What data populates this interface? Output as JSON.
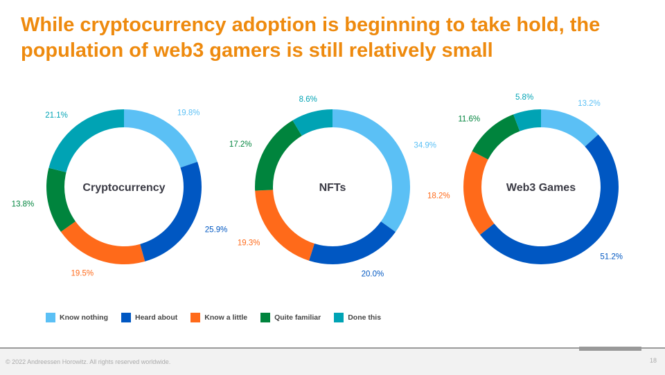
{
  "title": "While cryptocurrency adoption is beginning to take hold, the population of web3 gamers is still relatively small",
  "chart_data": [
    {
      "type": "pie",
      "donut": true,
      "center_label": "Cryptocurrency",
      "categories": [
        "Know nothing",
        "Heard about",
        "Know a little",
        "Quite familiar",
        "Done this"
      ],
      "values": [
        19.8,
        25.9,
        19.5,
        13.8,
        21.1
      ],
      "labels": [
        "19.8%",
        "25.9%",
        "19.5%",
        "13.8%",
        "21.1%"
      ]
    },
    {
      "type": "pie",
      "donut": true,
      "center_label": "NFTs",
      "categories": [
        "Know nothing",
        "Heard about",
        "Know a little",
        "Quite familiar",
        "Done this"
      ],
      "values": [
        34.9,
        20.0,
        19.3,
        17.2,
        8.6
      ],
      "labels": [
        "34.9%",
        "20.0%",
        "19.3%",
        "17.2%",
        "8.6%"
      ]
    },
    {
      "type": "pie",
      "donut": true,
      "center_label": "Web3 Games",
      "categories": [
        "Know nothing",
        "Heard about",
        "Know a little",
        "Quite familiar",
        "Done this"
      ],
      "values": [
        13.2,
        51.2,
        18.2,
        11.6,
        5.8
      ],
      "labels": [
        "13.2%",
        "51.2%",
        "18.2%",
        "11.6%",
        "5.8%"
      ]
    }
  ],
  "legend": [
    {
      "label": "Know nothing",
      "color": "#5BC0F5"
    },
    {
      "label": "Heard about",
      "color": "#0057C2"
    },
    {
      "label": "Know a little",
      "color": "#FF6A1A"
    },
    {
      "label": "Quite familiar",
      "color": "#00843D"
    },
    {
      "label": "Done this",
      "color": "#00A3B4"
    }
  ],
  "footer": {
    "copyright": "© 2022 Andreessen Horowitz. All rights reserved worldwide.",
    "page": "18"
  }
}
